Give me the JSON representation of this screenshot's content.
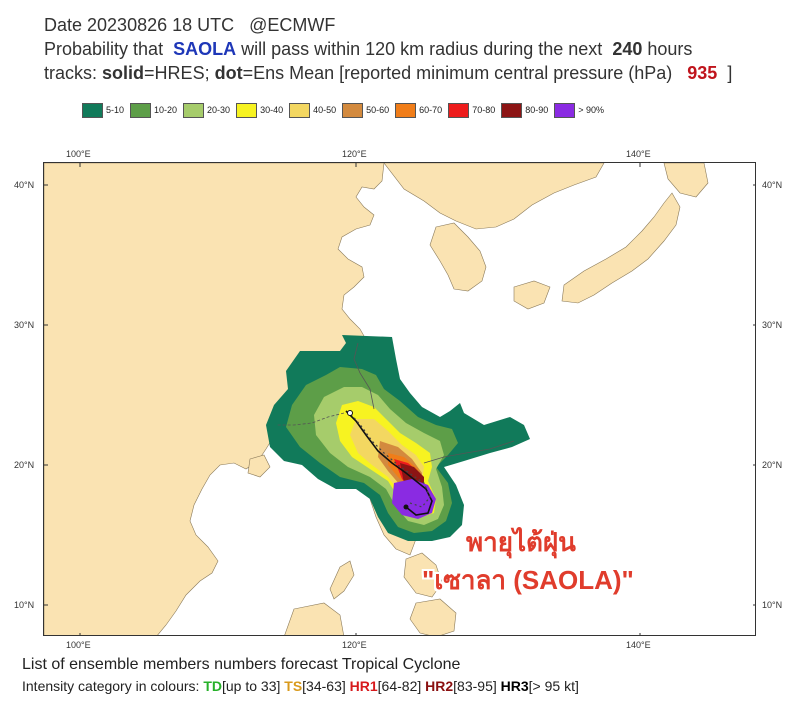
{
  "header": {
    "date": "Date 20230826 18 UTC",
    "source": "@ECMWF",
    "line2_pre": "Probability that",
    "storm_name": "SAOLA",
    "line2_mid": "will pass within 120 km radius during the next",
    "hours": "240",
    "line2_post": "hours",
    "line3_pre": "tracks:",
    "solid": "solid",
    "solid_desc": "=HRES;",
    "dot": "dot",
    "dot_desc": "=Ens Mean [reported minimum central pressure (hPa)",
    "pressure": "935",
    "line3_post": "]"
  },
  "legend": [
    {
      "label": "5-10",
      "color": "#117a5a"
    },
    {
      "label": "10-20",
      "color": "#5d9e48"
    },
    {
      "label": "20-30",
      "color": "#a6cc6b"
    },
    {
      "label": "30-40",
      "color": "#f7f321"
    },
    {
      "label": "40-50",
      "color": "#f3d761"
    },
    {
      "label": "50-60",
      "color": "#d38a3e"
    },
    {
      "label": "60-70",
      "color": "#f07d19"
    },
    {
      "label": "70-80",
      "color": "#ee1c1c"
    },
    {
      "label": "80-90",
      "color": "#8c1414"
    },
    {
      "label": "> 90%",
      "color": "#8a2be2"
    }
  ],
  "map": {
    "lon_ticks": [
      "100°E",
      "120°E",
      "140°E"
    ],
    "lat_ticks": [
      "40°N",
      "30°N",
      "20°N",
      "10°N"
    ],
    "land_color": "#fae3b2",
    "sea_color": "#ffffff"
  },
  "annotation": {
    "line1": "พายุไต้ฝุ่น",
    "line2": "\"เซาลา (SAOLA)\""
  },
  "footer": {
    "line1": "List of ensemble members numbers forecast Tropical Cyclone",
    "line2_pre": "Intensity category in colours:",
    "td": "TD",
    "td_range": "[up to 33]",
    "ts": "TS",
    "ts_range": "[34-63]",
    "hr1": "HR1",
    "hr1_range": "[64-82]",
    "hr2": "HR2",
    "hr2_range": "[83-95]",
    "hr3": "HR3",
    "hr3_range": "[> 95 kt]"
  }
}
